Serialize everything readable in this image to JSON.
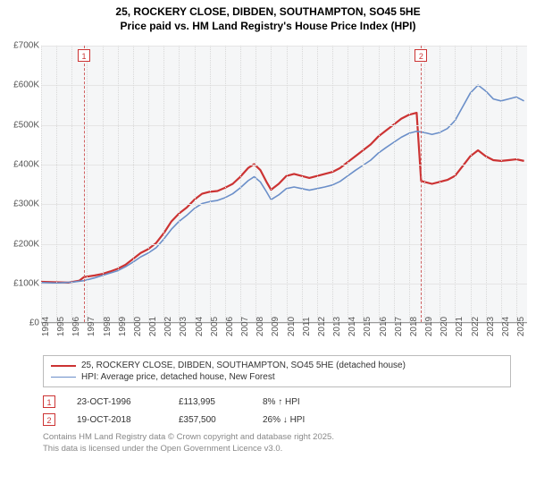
{
  "title": {
    "line1": "25, ROCKERY CLOSE, DIBDEN, SOUTHAMPTON, SO45 5HE",
    "line2": "Price paid vs. HM Land Registry's House Price Index (HPI)"
  },
  "chart": {
    "type": "line",
    "background_color": "#f5f6f7",
    "grid_color": "#e5e5e5",
    "x": {
      "min": 1994,
      "max": 2025.7,
      "ticks": [
        1994,
        1995,
        1996,
        1997,
        1998,
        1999,
        2000,
        2001,
        2002,
        2003,
        2004,
        2005,
        2006,
        2007,
        2008,
        2009,
        2010,
        2011,
        2012,
        2013,
        2014,
        2015,
        2016,
        2017,
        2018,
        2019,
        2020,
        2021,
        2022,
        2023,
        2024,
        2025
      ]
    },
    "y": {
      "min": 0,
      "max": 700000,
      "ticks": [
        0,
        100000,
        200000,
        300000,
        400000,
        500000,
        600000,
        700000
      ],
      "tick_labels": [
        "£0",
        "£100K",
        "£200K",
        "£300K",
        "£400K",
        "£500K",
        "£600K",
        "£700K"
      ]
    },
    "series": [
      {
        "id": "price_paid",
        "label": "25, ROCKERY CLOSE, DIBDEN, SOUTHAMPTON, SO45 5HE (detached house)",
        "color": "#cc3333",
        "width": 2.2,
        "points": [
          [
            1994.0,
            102000
          ],
          [
            1995.0,
            101000
          ],
          [
            1995.8,
            100000
          ],
          [
            1996.5,
            105000
          ],
          [
            1996.8,
            113995
          ],
          [
            1997.5,
            118000
          ],
          [
            1998.0,
            122000
          ],
          [
            1998.5,
            128000
          ],
          [
            1999.0,
            135000
          ],
          [
            1999.5,
            145000
          ],
          [
            2000.0,
            160000
          ],
          [
            2000.5,
            175000
          ],
          [
            2001.0,
            185000
          ],
          [
            2001.5,
            200000
          ],
          [
            2002.0,
            225000
          ],
          [
            2002.5,
            255000
          ],
          [
            2003.0,
            275000
          ],
          [
            2003.5,
            290000
          ],
          [
            2004.0,
            310000
          ],
          [
            2004.5,
            325000
          ],
          [
            2005.0,
            330000
          ],
          [
            2005.5,
            332000
          ],
          [
            2006.0,
            340000
          ],
          [
            2006.5,
            350000
          ],
          [
            2007.0,
            368000
          ],
          [
            2007.5,
            390000
          ],
          [
            2007.9,
            400000
          ],
          [
            2008.3,
            385000
          ],
          [
            2008.7,
            355000
          ],
          [
            2009.0,
            335000
          ],
          [
            2009.5,
            350000
          ],
          [
            2010.0,
            370000
          ],
          [
            2010.5,
            375000
          ],
          [
            2011.0,
            370000
          ],
          [
            2011.5,
            365000
          ],
          [
            2012.0,
            370000
          ],
          [
            2012.5,
            375000
          ],
          [
            2013.0,
            380000
          ],
          [
            2013.5,
            390000
          ],
          [
            2014.0,
            405000
          ],
          [
            2014.5,
            420000
          ],
          [
            2015.0,
            435000
          ],
          [
            2015.5,
            450000
          ],
          [
            2016.0,
            470000
          ],
          [
            2016.5,
            485000
          ],
          [
            2017.0,
            500000
          ],
          [
            2017.5,
            515000
          ],
          [
            2018.0,
            525000
          ],
          [
            2018.5,
            530000
          ],
          [
            2018.79,
            357500
          ],
          [
            2019.0,
            355000
          ],
          [
            2019.5,
            350000
          ],
          [
            2020.0,
            355000
          ],
          [
            2020.5,
            360000
          ],
          [
            2021.0,
            370000
          ],
          [
            2021.5,
            395000
          ],
          [
            2022.0,
            420000
          ],
          [
            2022.5,
            435000
          ],
          [
            2023.0,
            420000
          ],
          [
            2023.5,
            410000
          ],
          [
            2024.0,
            408000
          ],
          [
            2024.5,
            410000
          ],
          [
            2025.0,
            412000
          ],
          [
            2025.5,
            408000
          ]
        ]
      },
      {
        "id": "hpi",
        "label": "HPI: Average price, detached house, New Forest",
        "color": "#6b8fc9",
        "width": 1.6,
        "points": [
          [
            1994.0,
            100000
          ],
          [
            1995.0,
            99000
          ],
          [
            1996.0,
            101000
          ],
          [
            1996.8,
            105000
          ],
          [
            1997.5,
            112000
          ],
          [
            1998.0,
            118000
          ],
          [
            1998.5,
            124000
          ],
          [
            1999.0,
            130000
          ],
          [
            1999.5,
            140000
          ],
          [
            2000.0,
            152000
          ],
          [
            2000.5,
            165000
          ],
          [
            2001.0,
            175000
          ],
          [
            2001.5,
            188000
          ],
          [
            2002.0,
            210000
          ],
          [
            2002.5,
            235000
          ],
          [
            2003.0,
            255000
          ],
          [
            2003.5,
            270000
          ],
          [
            2004.0,
            288000
          ],
          [
            2004.5,
            300000
          ],
          [
            2005.0,
            305000
          ],
          [
            2005.5,
            308000
          ],
          [
            2006.0,
            315000
          ],
          [
            2006.5,
            325000
          ],
          [
            2007.0,
            340000
          ],
          [
            2007.5,
            358000
          ],
          [
            2007.9,
            368000
          ],
          [
            2008.3,
            355000
          ],
          [
            2008.7,
            330000
          ],
          [
            2009.0,
            310000
          ],
          [
            2009.5,
            322000
          ],
          [
            2010.0,
            338000
          ],
          [
            2010.5,
            342000
          ],
          [
            2011.0,
            338000
          ],
          [
            2011.5,
            334000
          ],
          [
            2012.0,
            338000
          ],
          [
            2012.5,
            342000
          ],
          [
            2013.0,
            347000
          ],
          [
            2013.5,
            356000
          ],
          [
            2014.0,
            370000
          ],
          [
            2014.5,
            384000
          ],
          [
            2015.0,
            397000
          ],
          [
            2015.5,
            410000
          ],
          [
            2016.0,
            428000
          ],
          [
            2016.5,
            442000
          ],
          [
            2017.0,
            455000
          ],
          [
            2017.5,
            468000
          ],
          [
            2018.0,
            478000
          ],
          [
            2018.5,
            483000
          ],
          [
            2019.0,
            480000
          ],
          [
            2019.5,
            475000
          ],
          [
            2020.0,
            480000
          ],
          [
            2020.5,
            490000
          ],
          [
            2021.0,
            510000
          ],
          [
            2021.5,
            545000
          ],
          [
            2022.0,
            580000
          ],
          [
            2022.5,
            600000
          ],
          [
            2023.0,
            585000
          ],
          [
            2023.5,
            565000
          ],
          [
            2024.0,
            560000
          ],
          [
            2024.5,
            565000
          ],
          [
            2025.0,
            570000
          ],
          [
            2025.5,
            560000
          ]
        ]
      }
    ],
    "events": [
      {
        "id": "1",
        "x": 1996.8
      },
      {
        "id": "2",
        "x": 2018.79
      }
    ]
  },
  "legend": {
    "items": [
      {
        "color": "#cc3333",
        "width": 2.2,
        "label": "25, ROCKERY CLOSE, DIBDEN, SOUTHAMPTON, SO45 5HE (detached house)"
      },
      {
        "color": "#6b8fc9",
        "width": 1.6,
        "label": "HPI: Average price, detached house, New Forest"
      }
    ]
  },
  "transactions": [
    {
      "marker": "1",
      "date": "23-OCT-1996",
      "price": "£113,995",
      "change": "8% ↑ HPI"
    },
    {
      "marker": "2",
      "date": "19-OCT-2018",
      "price": "£357,500",
      "change": "26% ↓ HPI"
    }
  ],
  "attribution": {
    "line1": "Contains HM Land Registry data © Crown copyright and database right 2025.",
    "line2": "This data is licensed under the Open Government Licence v3.0."
  }
}
